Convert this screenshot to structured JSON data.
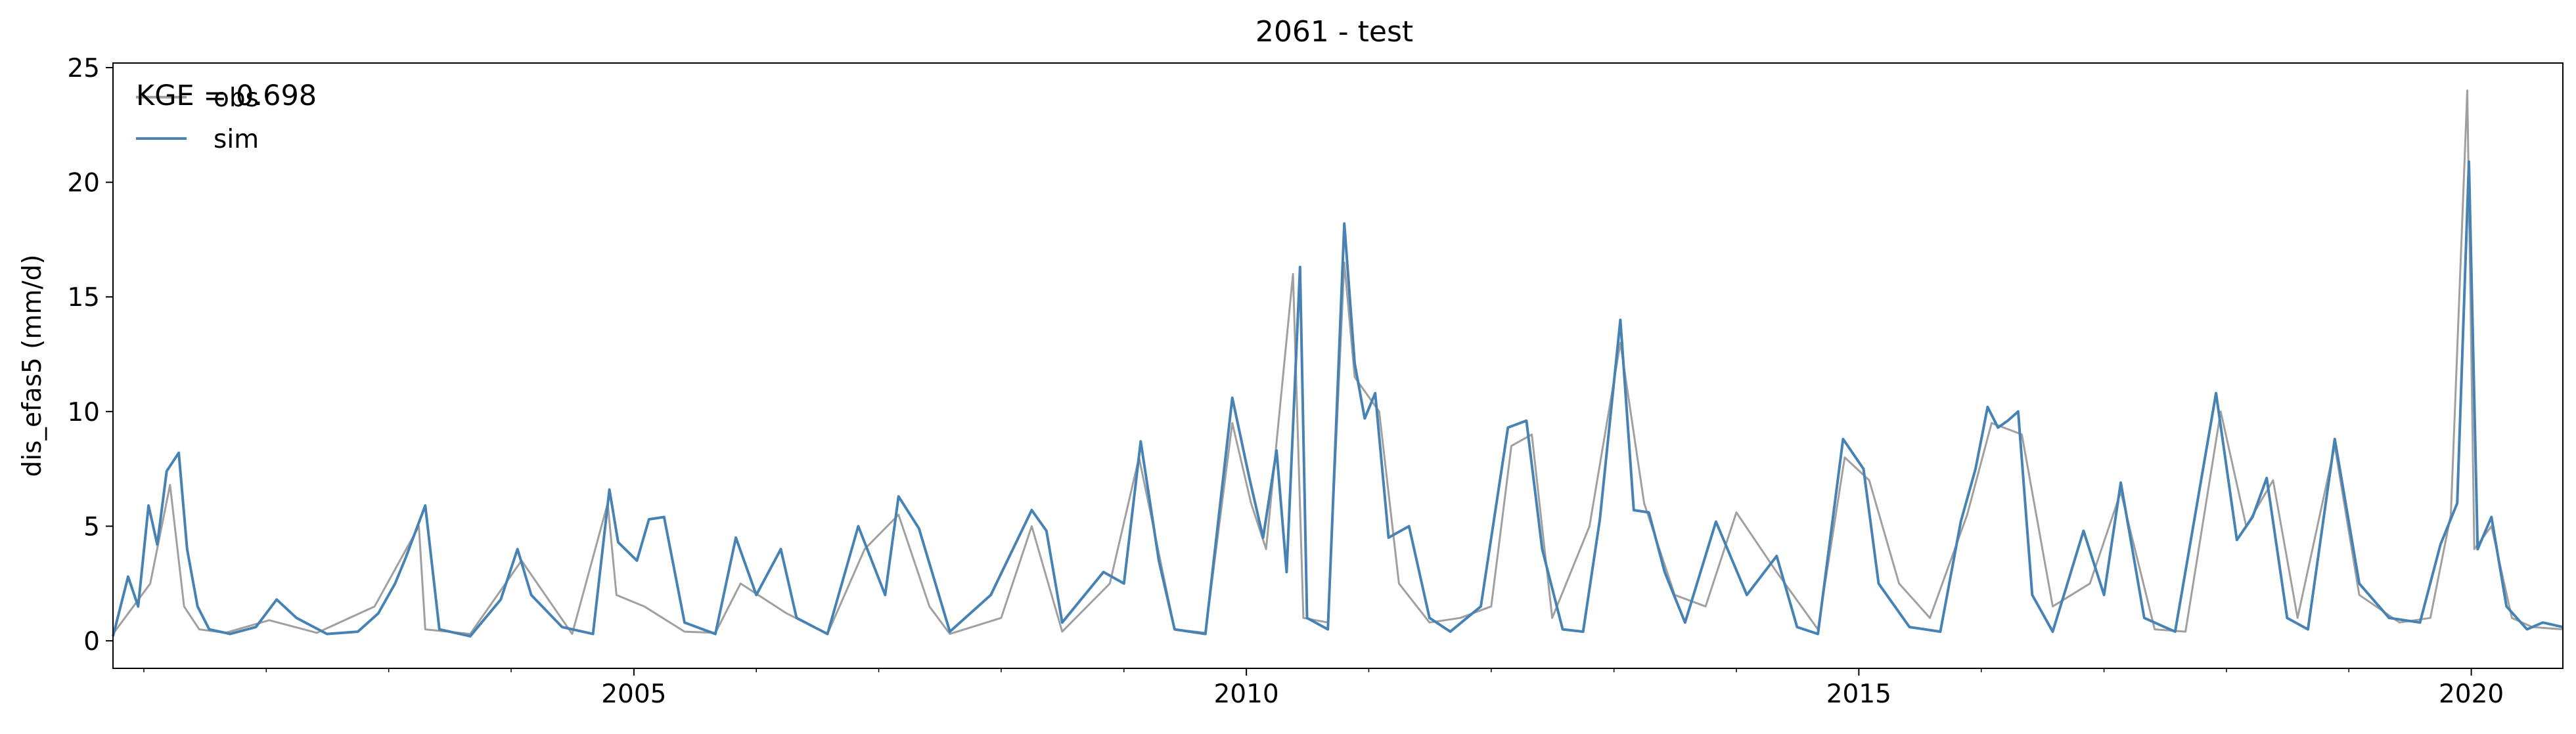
{
  "chart_data": {
    "type": "line",
    "title": "2061 - test",
    "ylabel": "dis_efas5 (mm/d)",
    "xlabel": "",
    "xlim": [
      "2000-10-01",
      "2020-09-30"
    ],
    "ylim": [
      -1.2,
      25.2
    ],
    "x_ticks": [
      "2005",
      "2010",
      "2015",
      "2020"
    ],
    "x_tick_dates": [
      "2005-01-01",
      "2010-01-01",
      "2015-01-01",
      "2020-01-01"
    ],
    "y_ticks": [
      0,
      5,
      10,
      15,
      20,
      25
    ],
    "grid": false,
    "legend_position": "top-left",
    "annotation": "KGE = 0.698",
    "series": [
      {
        "name": "obs",
        "color": "#a0a0a0",
        "points": [
          [
            "2000-10-01",
            0.3
          ],
          [
            "2001-01-20",
            2.5
          ],
          [
            "2001-03-20",
            6.8
          ],
          [
            "2001-05-01",
            1.5
          ],
          [
            "2001-06-15",
            0.5
          ],
          [
            "2001-09-01",
            0.35
          ],
          [
            "2002-01-10",
            0.9
          ],
          [
            "2002-06-01",
            0.35
          ],
          [
            "2002-11-20",
            1.5
          ],
          [
            "2003-04-01",
            5.0
          ],
          [
            "2003-04-20",
            0.5
          ],
          [
            "2003-09-01",
            0.3
          ],
          [
            "2004-02-01",
            3.5
          ],
          [
            "2004-07-01",
            0.3
          ],
          [
            "2004-10-15",
            6.0
          ],
          [
            "2004-11-10",
            2.0
          ],
          [
            "2005-02-01",
            1.5
          ],
          [
            "2005-06-01",
            0.4
          ],
          [
            "2005-09-01",
            0.35
          ],
          [
            "2005-11-15",
            2.5
          ],
          [
            "2006-04-01",
            1.2
          ],
          [
            "2006-08-01",
            0.3
          ],
          [
            "2006-11-20",
            4.0
          ],
          [
            "2007-03-01",
            5.5
          ],
          [
            "2007-06-01",
            1.5
          ],
          [
            "2007-08-01",
            0.3
          ],
          [
            "2008-01-01",
            1.0
          ],
          [
            "2008-04-01",
            5.0
          ],
          [
            "2008-07-01",
            0.4
          ],
          [
            "2008-11-20",
            2.5
          ],
          [
            "2009-02-15",
            8.0
          ],
          [
            "2009-06-01",
            0.5
          ],
          [
            "2009-09-01",
            0.35
          ],
          [
            "2009-11-20",
            9.5
          ],
          [
            "2010-01-15",
            6.0
          ],
          [
            "2010-03-01",
            4.0
          ],
          [
            "2010-05-20",
            16.0
          ],
          [
            "2010-06-20",
            1.0
          ],
          [
            "2010-09-01",
            0.8
          ],
          [
            "2010-10-20",
            16.5
          ],
          [
            "2010-11-20",
            11.5
          ],
          [
            "2011-02-01",
            10.0
          ],
          [
            "2011-04-01",
            2.5
          ],
          [
            "2011-07-01",
            0.8
          ],
          [
            "2011-10-01",
            1.0
          ],
          [
            "2012-01-01",
            1.5
          ],
          [
            "2012-03-01",
            8.5
          ],
          [
            "2012-05-01",
            9.0
          ],
          [
            "2012-07-01",
            1.0
          ],
          [
            "2012-10-20",
            5.0
          ],
          [
            "2013-01-20",
            13.0
          ],
          [
            "2013-04-01",
            6.0
          ],
          [
            "2013-07-01",
            2.0
          ],
          [
            "2013-10-01",
            1.5
          ],
          [
            "2014-01-01",
            5.6
          ],
          [
            "2014-05-01",
            3.0
          ],
          [
            "2014-09-01",
            0.5
          ],
          [
            "2014-11-20",
            8.0
          ],
          [
            "2015-02-01",
            7.0
          ],
          [
            "2015-05-01",
            2.5
          ],
          [
            "2015-08-01",
            1.0
          ],
          [
            "2015-11-20",
            5.5
          ],
          [
            "2016-02-01",
            9.5
          ],
          [
            "2016-05-01",
            9.0
          ],
          [
            "2016-08-01",
            1.5
          ],
          [
            "2016-11-20",
            2.5
          ],
          [
            "2017-02-20",
            6.5
          ],
          [
            "2017-06-01",
            0.5
          ],
          [
            "2017-09-01",
            0.4
          ],
          [
            "2017-12-15",
            10.0
          ],
          [
            "2018-03-01",
            5.0
          ],
          [
            "2018-05-20",
            7.0
          ],
          [
            "2018-08-01",
            1.0
          ],
          [
            "2018-11-20",
            8.5
          ],
          [
            "2019-02-01",
            2.0
          ],
          [
            "2019-06-01",
            0.8
          ],
          [
            "2019-09-01",
            1.0
          ],
          [
            "2019-11-01",
            5.5
          ],
          [
            "2019-12-20",
            24.0
          ],
          [
            "2020-01-10",
            4.0
          ],
          [
            "2020-03-01",
            5.0
          ],
          [
            "2020-05-01",
            1.0
          ],
          [
            "2020-07-01",
            0.6
          ],
          [
            "2020-09-30",
            0.5
          ]
        ]
      },
      {
        "name": "sim",
        "color": "#4682b4",
        "points": [
          [
            "2000-10-01",
            0.2
          ],
          [
            "2000-11-15",
            2.8
          ],
          [
            "2000-12-15",
            1.5
          ],
          [
            "2001-01-15",
            5.9
          ],
          [
            "2001-02-10",
            4.2
          ],
          [
            "2001-03-10",
            7.4
          ],
          [
            "2001-04-15",
            8.2
          ],
          [
            "2001-05-10",
            4.0
          ],
          [
            "2001-06-10",
            1.5
          ],
          [
            "2001-07-15",
            0.5
          ],
          [
            "2001-09-15",
            0.3
          ],
          [
            "2001-12-01",
            0.6
          ],
          [
            "2002-02-01",
            1.8
          ],
          [
            "2002-04-01",
            1.0
          ],
          [
            "2002-07-01",
            0.3
          ],
          [
            "2002-10-01",
            0.4
          ],
          [
            "2002-12-01",
            1.2
          ],
          [
            "2003-01-20",
            2.5
          ],
          [
            "2003-02-20",
            3.6
          ],
          [
            "2003-04-20",
            5.9
          ],
          [
            "2003-06-01",
            0.5
          ],
          [
            "2003-09-01",
            0.2
          ],
          [
            "2003-12-01",
            1.8
          ],
          [
            "2004-01-20",
            4.0
          ],
          [
            "2004-03-01",
            2.0
          ],
          [
            "2004-06-01",
            0.6
          ],
          [
            "2004-09-01",
            0.3
          ],
          [
            "2004-10-20",
            6.6
          ],
          [
            "2004-11-15",
            4.3
          ],
          [
            "2005-01-10",
            3.5
          ],
          [
            "2005-02-15",
            5.3
          ],
          [
            "2005-04-01",
            5.4
          ],
          [
            "2005-06-01",
            0.8
          ],
          [
            "2005-09-01",
            0.3
          ],
          [
            "2005-11-01",
            4.5
          ],
          [
            "2006-01-01",
            2.0
          ],
          [
            "2006-03-15",
            4.0
          ],
          [
            "2006-05-01",
            1.0
          ],
          [
            "2006-08-01",
            0.3
          ],
          [
            "2006-11-01",
            5.0
          ],
          [
            "2007-01-20",
            2.0
          ],
          [
            "2007-03-01",
            6.3
          ],
          [
            "2007-05-01",
            4.9
          ],
          [
            "2007-08-01",
            0.4
          ],
          [
            "2007-12-01",
            2.0
          ],
          [
            "2008-04-01",
            5.7
          ],
          [
            "2008-05-15",
            4.8
          ],
          [
            "2008-07-01",
            0.8
          ],
          [
            "2008-11-01",
            3.0
          ],
          [
            "2009-01-01",
            2.5
          ],
          [
            "2009-02-20",
            8.7
          ],
          [
            "2009-04-15",
            3.5
          ],
          [
            "2009-06-01",
            0.5
          ],
          [
            "2009-09-01",
            0.3
          ],
          [
            "2009-11-20",
            10.6
          ],
          [
            "2010-01-10",
            7.1
          ],
          [
            "2010-02-20",
            4.5
          ],
          [
            "2010-04-01",
            8.3
          ],
          [
            "2010-05-01",
            3.0
          ],
          [
            "2010-06-10",
            16.3
          ],
          [
            "2010-07-01",
            1.0
          ],
          [
            "2010-09-01",
            0.5
          ],
          [
            "2010-10-20",
            18.2
          ],
          [
            "2010-11-20",
            12.1
          ],
          [
            "2010-12-20",
            9.7
          ],
          [
            "2011-01-20",
            10.8
          ],
          [
            "2011-03-01",
            4.5
          ],
          [
            "2011-05-01",
            5.0
          ],
          [
            "2011-07-01",
            1.0
          ],
          [
            "2011-09-01",
            0.4
          ],
          [
            "2011-12-01",
            1.5
          ],
          [
            "2012-02-20",
            9.3
          ],
          [
            "2012-04-15",
            9.6
          ],
          [
            "2012-06-01",
            4.0
          ],
          [
            "2012-08-01",
            0.5
          ],
          [
            "2012-10-01",
            0.4
          ],
          [
            "2012-11-20",
            5.3
          ],
          [
            "2013-01-20",
            14.0
          ],
          [
            "2013-03-01",
            5.7
          ],
          [
            "2013-04-15",
            5.6
          ],
          [
            "2013-06-01",
            3.0
          ],
          [
            "2013-08-01",
            0.8
          ],
          [
            "2013-11-01",
            5.2
          ],
          [
            "2014-02-01",
            2.0
          ],
          [
            "2014-05-01",
            3.7
          ],
          [
            "2014-07-01",
            0.6
          ],
          [
            "2014-09-01",
            0.3
          ],
          [
            "2014-11-15",
            8.8
          ],
          [
            "2015-01-15",
            7.5
          ],
          [
            "2015-03-01",
            2.5
          ],
          [
            "2015-06-01",
            0.6
          ],
          [
            "2015-09-01",
            0.4
          ],
          [
            "2015-11-01",
            5.2
          ],
          [
            "2015-12-15",
            7.5
          ],
          [
            "2016-01-20",
            10.2
          ],
          [
            "2016-02-20",
            9.3
          ],
          [
            "2016-03-20",
            9.6
          ],
          [
            "2016-04-20",
            10.0
          ],
          [
            "2016-06-01",
            2.0
          ],
          [
            "2016-08-01",
            0.4
          ],
          [
            "2016-11-01",
            4.8
          ],
          [
            "2017-01-01",
            2.0
          ],
          [
            "2017-02-20",
            6.9
          ],
          [
            "2017-05-01",
            1.0
          ],
          [
            "2017-08-01",
            0.4
          ],
          [
            "2017-12-01",
            10.8
          ],
          [
            "2018-02-01",
            4.4
          ],
          [
            "2018-03-20",
            5.4
          ],
          [
            "2018-05-01",
            7.1
          ],
          [
            "2018-07-01",
            1.0
          ],
          [
            "2018-09-01",
            0.5
          ],
          [
            "2018-11-20",
            8.8
          ],
          [
            "2019-02-01",
            2.5
          ],
          [
            "2019-05-01",
            1.0
          ],
          [
            "2019-08-01",
            0.8
          ],
          [
            "2019-10-01",
            4.2
          ],
          [
            "2019-11-20",
            6.0
          ],
          [
            "2019-12-25",
            20.9
          ],
          [
            "2020-01-20",
            4.0
          ],
          [
            "2020-03-01",
            5.4
          ],
          [
            "2020-04-15",
            1.5
          ],
          [
            "2020-06-15",
            0.5
          ],
          [
            "2020-08-01",
            0.8
          ],
          [
            "2020-09-30",
            0.6
          ]
        ]
      }
    ]
  }
}
